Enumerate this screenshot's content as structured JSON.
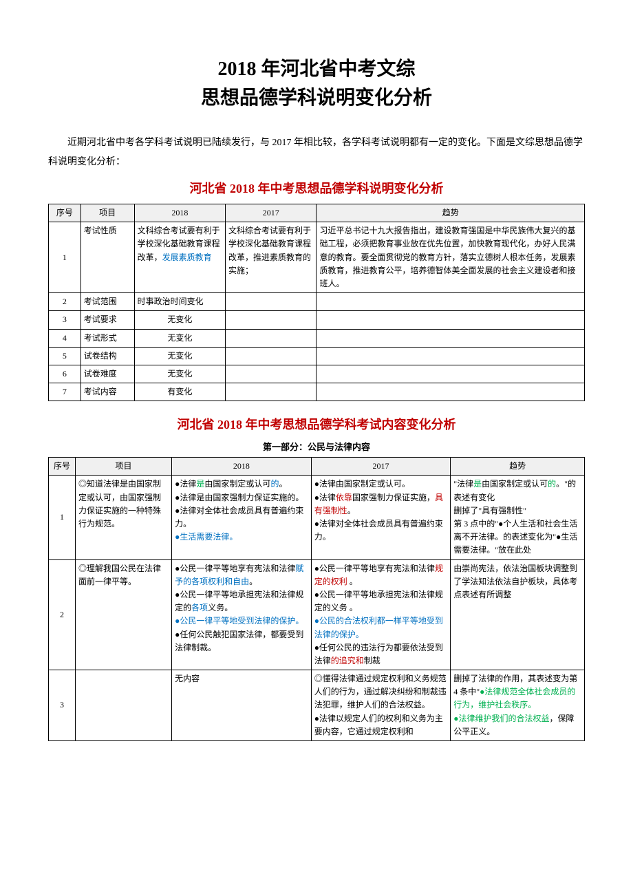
{
  "title_line1": "2018 年河北省中考文综",
  "title_line2": "思想品德学科说明变化分析",
  "intro": "近期河北省中考各学科考试说明已陆续发行，与 2017 年相比较，各学科考试说明都有一定的变化。下面是文综思想品德学科说明变化分析：",
  "subtitle1": "河北省 2018 年中考思想品德学科说明变化分析",
  "table1": {
    "col_widths": [
      "6%",
      "10%",
      "17%",
      "17%",
      "50%"
    ],
    "headers": [
      "序号",
      "项目",
      "2018",
      "2017",
      "趋势"
    ],
    "rows": [
      {
        "seq": "1",
        "item": "考试性质",
        "c2018": [
          {
            "t": "文科综合考试要有利于学校深化基础教育课程改革，"
          },
          {
            "t": "发展素质教育",
            "cls": "t-blue"
          }
        ],
        "c2017": [
          {
            "t": "文科综合考试要有利于学校深化基础教育课程改革，推进素质教育的实施；"
          }
        ],
        "trend": [
          {
            "t": "习近平总书记十九大报告指出，建设教育强国是中华民族伟大复兴的基础工程，必须把教育事业放在优先位置，加快教育现代化，办好人民满意的教育。要全面贯彻党的教育方针，落实立德树人根本任务，发展素质教育，推进教育公平，培养德智体美全面发展的社会主义建设者和接班人。"
          }
        ]
      },
      {
        "seq": "2",
        "item": "考试范围",
        "c2018": [
          {
            "t": "时事政治时间变化"
          }
        ],
        "c2017": [],
        "trend": []
      },
      {
        "seq": "3",
        "item": "考试要求",
        "c2018": [
          {
            "t": "无变化"
          }
        ],
        "c2017": [],
        "trend": [],
        "center2018": true
      },
      {
        "seq": "4",
        "item": "考试形式",
        "c2018": [
          {
            "t": "无变化"
          }
        ],
        "c2017": [],
        "trend": [],
        "center2018": true
      },
      {
        "seq": "5",
        "item": "试卷结构",
        "c2018": [
          {
            "t": "无变化"
          }
        ],
        "c2017": [],
        "trend": [],
        "center2018": true
      },
      {
        "seq": "6",
        "item": "试卷难度",
        "c2018": [
          {
            "t": "无变化"
          }
        ],
        "c2017": [],
        "trend": [],
        "center2018": true
      },
      {
        "seq": "7",
        "item": "考试内容",
        "c2018": [
          {
            "t": "有变化"
          }
        ],
        "c2017": [],
        "trend": [],
        "center2018": true
      }
    ]
  },
  "subtitle2": "河北省 2018 年中考思想品德学科考试内容变化分析",
  "part1_title": "第一部分：公民与法律内容",
  "table2": {
    "col_widths": [
      "5%",
      "18%",
      "26%",
      "26%",
      "25%"
    ],
    "headers": [
      "序号",
      "项目",
      "2018",
      "2017",
      "趋势"
    ],
    "rows": [
      {
        "seq": "1",
        "item": [
          {
            "t": "◎知道法律是由国家制定或认可，由国家强制力保证实施的一种特殊行为规范。"
          }
        ],
        "c2018": [
          {
            "t": "●法律"
          },
          {
            "t": "是",
            "cls": "t-green"
          },
          {
            "t": "由国家制定或认可"
          },
          {
            "t": "的",
            "cls": "t-blue"
          },
          {
            "t": "。",
            "br": true
          },
          {
            "t": "●法律是由国家强制力保证实施的。",
            "br": true
          },
          {
            "t": "●法律对全体社会成员具有普遍约束力。",
            "br": true
          },
          {
            "t": "●生活需要法律。",
            "cls": "t-blue"
          }
        ],
        "c2017": [
          {
            "t": "●法律由国家制定或认可。",
            "br": true
          },
          {
            "t": "●法律"
          },
          {
            "t": "依靠",
            "cls": "t-red"
          },
          {
            "t": "国家强制力保证实施，"
          },
          {
            "t": "具有强制性",
            "cls": "t-red"
          },
          {
            "t": "。",
            "br": true
          },
          {
            "t": "●法律对全体社会成员具有普遍约束力。"
          }
        ],
        "trend": [
          {
            "t": "\"法律"
          },
          {
            "t": "是",
            "cls": "t-green"
          },
          {
            "t": "由国家制定或认可"
          },
          {
            "t": "的",
            "cls": "t-green"
          },
          {
            "t": "。\"的表述有变化",
            "br": true
          },
          {
            "t": "删掉了\"具有强制性\"",
            "br": true
          },
          {
            "t": "第 3 点中的\"●个人生活和社会生活离不开法律。的表述变化为\"●生活需要法律。\"放在此处"
          }
        ]
      },
      {
        "seq": "2",
        "item": [
          {
            "t": "◎理解我国公民在法律面前一律平等。"
          }
        ],
        "c2018": [
          {
            "t": "●公民一律平等地享有宪法和法律"
          },
          {
            "t": "赋予的各项权利和自由",
            "cls": "t-blue"
          },
          {
            "t": "。",
            "br": true
          },
          {
            "t": "●公民一律平等地承担宪法和法律规定的"
          },
          {
            "t": "各项",
            "cls": "t-blue"
          },
          {
            "t": "义务。",
            "br": true
          },
          {
            "t": "●公民一律平等地受到法律的保护。",
            "cls": "t-blue",
            "br": true
          },
          {
            "t": "●任何公民触犯国家法律，都要受到法律制裁。"
          }
        ],
        "c2017": [
          {
            "t": "●公民一律平等地享有宪法和法律"
          },
          {
            "t": "规定的权利",
            "cls": "t-red"
          },
          {
            "t": " 。",
            "br": true
          },
          {
            "t": "●公民一律平等地承担宪法和法律规定的义务 。",
            "br": true
          },
          {
            "t": "●公民的合法权利都一样平等地受到法律的保护。",
            "cls": "t-blue",
            "br": true
          },
          {
            "t": "●任何公民的违法行为都要依法受到法律"
          },
          {
            "t": "的追究和",
            "cls": "t-red"
          },
          {
            "t": "制裁"
          }
        ],
        "trend": [
          {
            "t": "由崇尚宪法，依法治国板块调整到了学法知法依法自护板块，具体考点表述有所调整"
          }
        ]
      },
      {
        "seq": "3",
        "item": [],
        "c2018": [
          {
            "t": "无内容"
          }
        ],
        "c2017": [
          {
            "t": "◎懂得法律通过规定权利和义务规范人们的行为，通过解决纠纷和制裁违法犯罪，维护人们的合法权益。",
            "br": true
          },
          {
            "t": "●法律以规定人们的权利和义务为主要内容，它通过规定权利和"
          }
        ],
        "trend": [
          {
            "t": "删掉了法律的作用，其表述变为第 4 条中\""
          },
          {
            "t": "●法律规范全体社会成员的行为，维护社会秩序。",
            "cls": "t-green",
            "br": true
          },
          {
            "t": "●法律维护我们的合法权益",
            "cls": "t-green"
          },
          {
            "t": "，保障公平正义。"
          }
        ]
      }
    ]
  }
}
